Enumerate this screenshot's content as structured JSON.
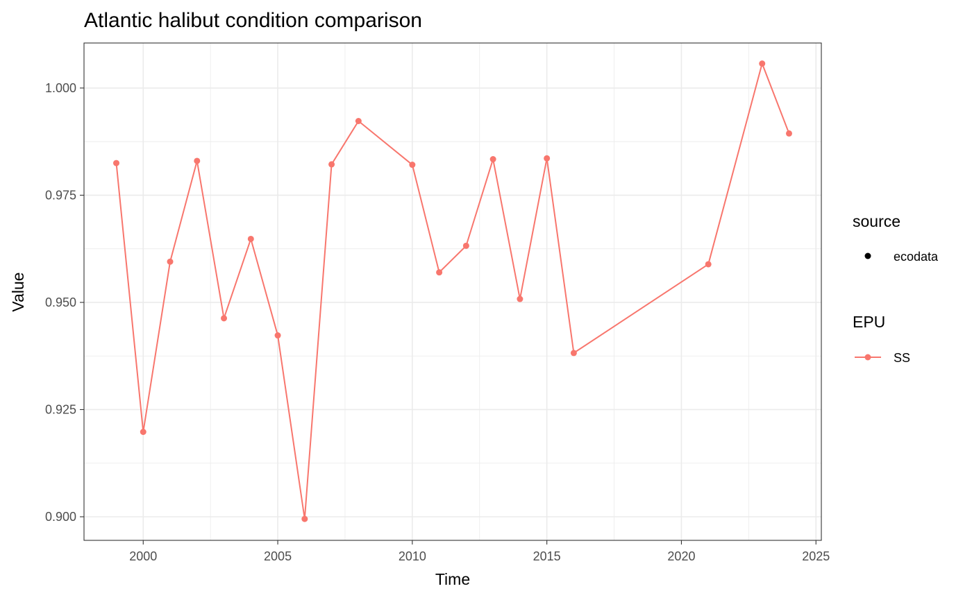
{
  "chart_data": {
    "type": "line",
    "title": "Atlantic halibut condition comparison",
    "xlabel": "Time",
    "ylabel": "Value",
    "xlim": [
      1997.8,
      2025.2
    ],
    "ylim": [
      0.8945,
      1.0105
    ],
    "x_ticks": [
      2000,
      2005,
      2010,
      2015,
      2020,
      2025
    ],
    "y_ticks": [
      0.9,
      0.925,
      0.95,
      0.975,
      1.0
    ],
    "x_tick_labels": [
      "2000",
      "2005",
      "2010",
      "2015",
      "2020",
      "2025"
    ],
    "y_tick_labels": [
      "0.900",
      "0.925",
      "0.950",
      "0.975",
      "1.000"
    ],
    "grid": true,
    "legend_position": "right",
    "legend": [
      {
        "title": "source",
        "entries": [
          {
            "label": "ecodata",
            "color": "#000000",
            "glyph": "point"
          }
        ]
      },
      {
        "title": "EPU",
        "entries": [
          {
            "label": "SS",
            "color": "#F8766D",
            "glyph": "line-point"
          }
        ]
      }
    ],
    "series": [
      {
        "name": "SS",
        "color": "#F8766D",
        "x": [
          1999,
          2000,
          2001,
          2002,
          2003,
          2004,
          2005,
          2006,
          2007,
          2008,
          2010,
          2011,
          2012,
          2013,
          2014,
          2015,
          2016,
          2021,
          2023,
          2024
        ],
        "y": [
          0.9825,
          0.9198,
          0.9595,
          0.983,
          0.9463,
          0.9648,
          0.9423,
          0.8995,
          0.9822,
          0.9923,
          0.9821,
          0.957,
          0.9632,
          0.9834,
          0.9508,
          0.9836,
          0.9382,
          0.9589,
          1.0057,
          0.9894
        ]
      }
    ]
  }
}
